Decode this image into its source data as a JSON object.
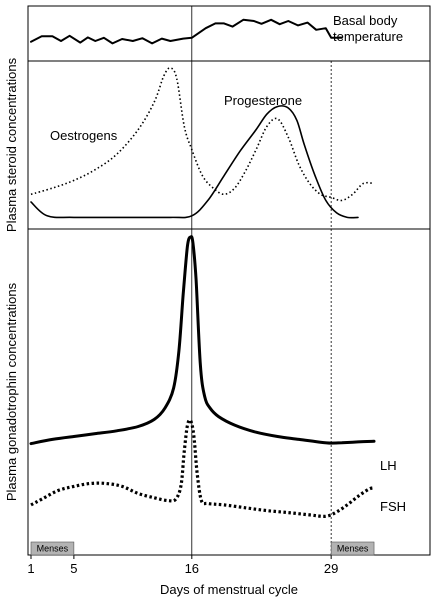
{
  "chart_data": {
    "type": "line",
    "xlabel": "Days of menstrual cycle",
    "x_ticks": [
      "1",
      "5",
      "16",
      "29"
    ],
    "x_range": [
      1,
      33
    ],
    "reference_lines_at_day": [
      16,
      29
    ],
    "menses_label": "Menses",
    "menses_periods": [
      [
        1,
        5
      ],
      [
        29,
        33
      ]
    ],
    "panels": [
      {
        "id": "temperature",
        "series": [
          {
            "name": "Basal body temperature",
            "label": "Basal body temperature",
            "label_lines": [
              "Basal body",
              "temperature"
            ],
            "style": "solid-thin",
            "points": [
              [
                1,
                0.28
              ],
              [
                2,
                0.42
              ],
              [
                3,
                0.42
              ],
              [
                3.8,
                0.3
              ],
              [
                4.6,
                0.43
              ],
              [
                5.6,
                0.26
              ],
              [
                6.3,
                0.39
              ],
              [
                7,
                0.3
              ],
              [
                7.8,
                0.38
              ],
              [
                8.6,
                0.24
              ],
              [
                9.5,
                0.35
              ],
              [
                10.5,
                0.3
              ],
              [
                11.4,
                0.37
              ],
              [
                12.3,
                0.24
              ],
              [
                13.2,
                0.36
              ],
              [
                14,
                0.3
              ],
              [
                15.2,
                0.36
              ],
              [
                16,
                0.38
              ],
              [
                17.3,
                0.62
              ],
              [
                18.2,
                0.74
              ],
              [
                19,
                0.74
              ],
              [
                19.8,
                0.66
              ],
              [
                20.8,
                0.83
              ],
              [
                21.8,
                0.8
              ],
              [
                22.5,
                0.73
              ],
              [
                23.4,
                0.83
              ],
              [
                24.2,
                0.72
              ],
              [
                25,
                0.8
              ],
              [
                25.9,
                0.69
              ],
              [
                26.8,
                0.76
              ],
              [
                27.6,
                0.58
              ],
              [
                28.5,
                0.62
              ],
              [
                29,
                0.38
              ],
              [
                30,
                0.38
              ]
            ]
          }
        ]
      },
      {
        "id": "steroids",
        "ylabel": "Plasma steroid concentrations",
        "series": [
          {
            "name": "Oestrogens",
            "label": "Oestrogens",
            "style": "dotted",
            "points": [
              [
                1,
                0.18
              ],
              [
                3,
                0.22
              ],
              [
                5,
                0.27
              ],
              [
                7,
                0.34
              ],
              [
                9,
                0.44
              ],
              [
                11,
                0.6
              ],
              [
                12.5,
                0.78
              ],
              [
                13.4,
                0.95
              ],
              [
                14,
                1.0
              ],
              [
                14.6,
                0.93
              ],
              [
                15.3,
                0.62
              ],
              [
                16,
                0.47
              ],
              [
                17,
                0.3
              ],
              [
                18,
                0.22
              ],
              [
                19,
                0.18
              ],
              [
                20,
                0.22
              ],
              [
                21,
                0.33
              ],
              [
                22,
                0.47
              ],
              [
                23,
                0.62
              ],
              [
                24,
                0.67
              ],
              [
                25,
                0.55
              ],
              [
                26,
                0.37
              ],
              [
                27,
                0.25
              ],
              [
                28,
                0.18
              ],
              [
                29,
                0.16
              ],
              [
                30,
                0.14
              ],
              [
                31,
                0.18
              ],
              [
                32,
                0.25
              ],
              [
                33,
                0.25
              ]
            ]
          },
          {
            "name": "Progesterone",
            "label": "Progesterone",
            "style": "solid",
            "points": [
              [
                1,
                0.13
              ],
              [
                2.5,
                0.04
              ],
              [
                5,
                0.03
              ],
              [
                10,
                0.03
              ],
              [
                14,
                0.03
              ],
              [
                16,
                0.04
              ],
              [
                17.5,
                0.14
              ],
              [
                19,
                0.3
              ],
              [
                20.5,
                0.46
              ],
              [
                22,
                0.6
              ],
              [
                23,
                0.7
              ],
              [
                24,
                0.75
              ],
              [
                25,
                0.74
              ],
              [
                25.8,
                0.66
              ],
              [
                26.5,
                0.5
              ],
              [
                27.5,
                0.3
              ],
              [
                28.5,
                0.14
              ],
              [
                29.5,
                0.06
              ],
              [
                30.5,
                0.03
              ],
              [
                31.5,
                0.03
              ]
            ]
          }
        ]
      },
      {
        "id": "gonadotrophins",
        "ylabel": "Plasma gonadotrophin concentrations",
        "series": [
          {
            "name": "LH",
            "label": "LH",
            "style": "solid-thick",
            "points": [
              [
                1,
                0.275
              ],
              [
                3,
                0.29
              ],
              [
                5,
                0.3
              ],
              [
                7,
                0.31
              ],
              [
                9,
                0.32
              ],
              [
                11,
                0.335
              ],
              [
                12.5,
                0.36
              ],
              [
                13.5,
                0.4
              ],
              [
                14.3,
                0.47
              ],
              [
                14.8,
                0.6
              ],
              [
                15.2,
                0.8
              ],
              [
                15.6,
                0.97
              ],
              [
                15.9,
                1.0
              ],
              [
                16.1,
                0.98
              ],
              [
                16.4,
                0.85
              ],
              [
                16.8,
                0.55
              ],
              [
                17.2,
                0.44
              ],
              [
                17.7,
                0.4
              ],
              [
                18.5,
                0.37
              ],
              [
                20,
                0.34
              ],
              [
                22,
                0.315
              ],
              [
                24,
                0.3
              ],
              [
                26,
                0.29
              ],
              [
                28,
                0.28
              ],
              [
                29,
                0.277
              ],
              [
                30,
                0.278
              ],
              [
                31,
                0.28
              ],
              [
                32,
                0.282
              ],
              [
                33,
                0.283
              ]
            ]
          },
          {
            "name": "FSH",
            "label": "FSH",
            "style": "dotted-thick",
            "points": [
              [
                1,
                0.06
              ],
              [
                2,
                0.08
              ],
              [
                3.5,
                0.11
              ],
              [
                5,
                0.125
              ],
              [
                6.5,
                0.135
              ],
              [
                8,
                0.135
              ],
              [
                9.5,
                0.125
              ],
              [
                11,
                0.1
              ],
              [
                12.5,
                0.085
              ],
              [
                13.8,
                0.075
              ],
              [
                14.5,
                0.08
              ],
              [
                15,
                0.13
              ],
              [
                15.3,
                0.25
              ],
              [
                15.6,
                0.34
              ],
              [
                15.9,
                0.355
              ],
              [
                16.2,
                0.3
              ],
              [
                16.5,
                0.17
              ],
              [
                16.9,
                0.075
              ],
              [
                17.5,
                0.065
              ],
              [
                19,
                0.06
              ],
              [
                21,
                0.05
              ],
              [
                23,
                0.04
              ],
              [
                25,
                0.033
              ],
              [
                27,
                0.025
              ],
              [
                28.5,
                0.02
              ],
              [
                29.5,
                0.035
              ],
              [
                30.5,
                0.06
              ],
              [
                31.5,
                0.09
              ],
              [
                32.5,
                0.115
              ],
              [
                33,
                0.12
              ]
            ]
          }
        ]
      }
    ]
  }
}
